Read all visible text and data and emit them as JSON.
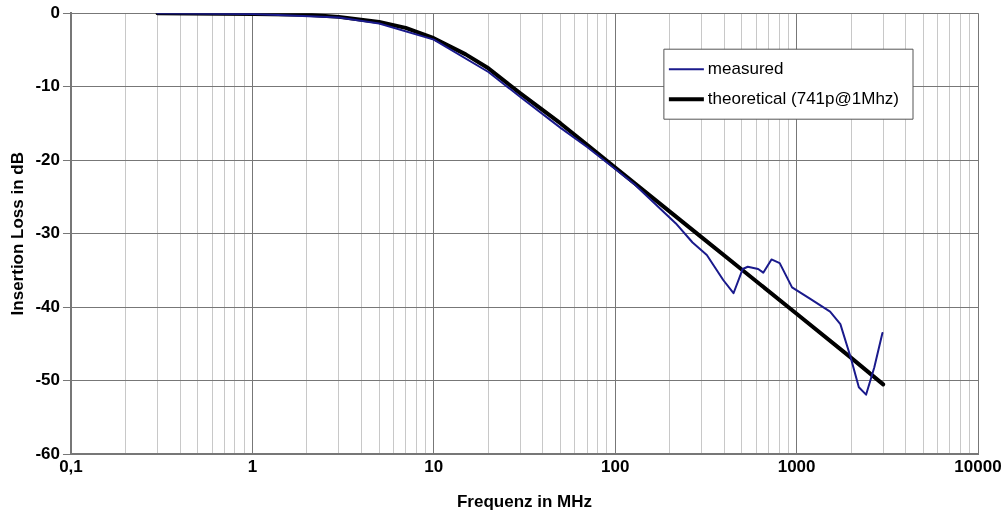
{
  "chart_data": {
    "type": "line",
    "xlabel": "Frequenz in MHz",
    "ylabel": "Insertion Loss in dB",
    "log": "x",
    "grid": true,
    "legend": "top right",
    "marker": "none",
    "line_style": "solid",
    "xlim": [
      0.1,
      10000
    ],
    "ylim": [
      -60,
      0
    ],
    "xticks": [
      {
        "value": 0.1,
        "label": "0,1"
      },
      {
        "value": 0.2,
        "label": null
      },
      {
        "value": 0.3,
        "label": null
      },
      {
        "value": 0.4,
        "label": null
      },
      {
        "value": 0.5,
        "label": null
      },
      {
        "value": 0.6,
        "label": null
      },
      {
        "value": 0.7,
        "label": null
      },
      {
        "value": 0.8,
        "label": null
      },
      {
        "value": 0.9,
        "label": null
      },
      1,
      {
        "value": 2,
        "label": null
      },
      {
        "value": 3,
        "label": null
      },
      {
        "value": 4,
        "label": null
      },
      {
        "value": 5,
        "label": null
      },
      {
        "value": 6,
        "label": null
      },
      {
        "value": 7,
        "label": null
      },
      {
        "value": 8,
        "label": null
      },
      {
        "value": 9,
        "label": null
      },
      10,
      {
        "value": 20,
        "label": null
      },
      {
        "value": 30,
        "label": null
      },
      {
        "value": 40,
        "label": null
      },
      {
        "value": 50,
        "label": null
      },
      {
        "value": 60,
        "label": null
      },
      {
        "value": 70,
        "label": null
      },
      {
        "value": 80,
        "label": null
      },
      {
        "value": 90,
        "label": null
      },
      100,
      {
        "value": 200,
        "label": null
      },
      {
        "value": 300,
        "label": null
      },
      {
        "value": 400,
        "label": null
      },
      {
        "value": 500,
        "label": null
      },
      {
        "value": 600,
        "label": null
      },
      {
        "value": 700,
        "label": null
      },
      {
        "value": 800,
        "label": null
      },
      {
        "value": 900,
        "label": null
      },
      1000,
      {
        "value": 2000,
        "label": null
      },
      {
        "value": 3000,
        "label": null
      },
      {
        "value": 4000,
        "label": null
      },
      {
        "value": 5000,
        "label": null
      },
      {
        "value": 6000,
        "label": null
      },
      {
        "value": 7000,
        "label": null
      },
      {
        "value": 8000,
        "label": null
      },
      {
        "value": 9000,
        "label": null
      },
      10000
    ],
    "yticks": [
      -60,
      -50,
      -40,
      -30,
      -20,
      -10,
      0
    ],
    "series": [
      {
        "name": "measured",
        "color": "#1a1a8c",
        "x": [
          0.3,
          1,
          3,
          5,
          10,
          20,
          30,
          50,
          70,
          100,
          128,
          216,
          267,
          320,
          394,
          449,
          505,
          538,
          614,
          655,
          727,
          807,
          944,
          1178,
          1530,
          1743,
          1985,
          2204,
          2415,
          2680,
          2973
        ],
        "values": [
          0,
          -0.1,
          -0.6,
          -1.4,
          -3.6,
          -8.0,
          -11.4,
          -15.6,
          -18.2,
          -21.2,
          -23.3,
          -28.6,
          -31.2,
          -32.9,
          -36.3,
          -38.1,
          -34.8,
          -34.5,
          -34.8,
          -35.3,
          -33.5,
          -34.0,
          -37.3,
          -38.8,
          -40.6,
          -42.3,
          -46.8,
          -50.9,
          -51.9,
          -48.2,
          -43.5
        ]
      },
      {
        "name": "theoretical (741p@1Mhz)",
        "color": "#000000",
        "x": [
          0.3,
          1,
          2,
          3,
          5,
          7,
          10,
          15,
          20,
          30,
          50,
          70,
          100,
          200,
          300,
          500,
          1000,
          2000,
          3000
        ],
        "values": [
          0,
          -0.1,
          -0.2,
          -0.5,
          -1.2,
          -2.0,
          -3.4,
          -5.6,
          -7.5,
          -10.9,
          -15.0,
          -17.9,
          -21.0,
          -27.0,
          -30.5,
          -34.9,
          -40.9,
          -46.9,
          -50.5
        ]
      }
    ]
  }
}
